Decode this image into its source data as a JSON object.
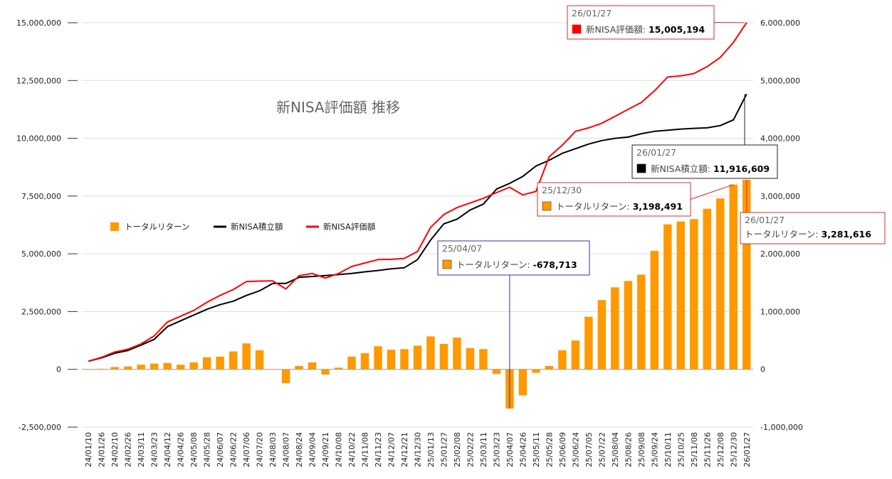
{
  "chart_data": {
    "type": "bar+line",
    "title": "新NISA評価額 推移",
    "x_tick_labels": [
      "24/01/10",
      "24/01/26",
      "24/02/10",
      "24/02/26",
      "24/03/11",
      "24/03/23",
      "24/04/12",
      "24/04/26",
      "24/05/08",
      "24/05/28",
      "24/06/07",
      "24/06/22",
      "24/07/06",
      "24/07/20",
      "24/08/03",
      "24/08/07",
      "24/08/24",
      "24/09/04",
      "24/09/21",
      "24/10/08",
      "24/10/22",
      "24/11/08",
      "24/11/23",
      "24/12/07",
      "24/12/21",
      "24/12/30",
      "25/01/13",
      "25/01/27",
      "25/02/08",
      "25/02/22",
      "25/03/11",
      "25/03/23",
      "25/04/07",
      "25/04/26",
      "25/05/11",
      "25/05/28",
      "25/06/09",
      "25/06/24",
      "25/07/05",
      "25/07/22",
      "25/08/04",
      "25/08/26",
      "25/09/08",
      "25/09/24",
      "25/10/11",
      "25/10/25",
      "25/11/08",
      "25/11/26",
      "25/12/08",
      "25/12/30",
      "26/01/27"
    ],
    "y_left": {
      "min": -2500000,
      "max": 15000000,
      "ticks": [
        "-2,500,000",
        "0",
        "2,500,000",
        "5,000,000",
        "7,500,000",
        "10,000,000",
        "12,500,000",
        "15,000,000"
      ],
      "tick_values": [
        -2500000,
        0,
        2500000,
        5000000,
        7500000,
        10000000,
        12500000,
        15000000
      ]
    },
    "y_right": {
      "min": -1000000,
      "max": 6000000,
      "ticks": [
        "-1,000,000",
        "0",
        "1,000,000",
        "2,000,000",
        "3,000,000",
        "4,000,000",
        "5,000,000",
        "6,000,000"
      ],
      "tick_values": [
        -1000000,
        0,
        1000000,
        2000000,
        3000000,
        4000000,
        5000000,
        6000000
      ]
    },
    "series": [
      {
        "name": "トータルリターン",
        "type": "bar",
        "axis": "right",
        "color": "#ff9900",
        "values": [
          0,
          10000,
          40000,
          50000,
          80000,
          100000,
          110000,
          80000,
          120000,
          210000,
          220000,
          310000,
          450000,
          330000,
          5000,
          -240000,
          60000,
          120000,
          -90000,
          30000,
          220000,
          280000,
          400000,
          340000,
          350000,
          410000,
          570000,
          440000,
          550000,
          370000,
          350000,
          -80000,
          -678713,
          -450000,
          -60000,
          60000,
          330000,
          500000,
          910000,
          1200000,
          1420000,
          1530000,
          1640000,
          2050000,
          2510000,
          2560000,
          2600000,
          2780000,
          2960000,
          3198491,
          3281616
        ]
      },
      {
        "name": "新NISA積立額",
        "type": "line",
        "axis": "left",
        "color": "#000000",
        "values": [
          350000,
          500000,
          700000,
          820000,
          1050000,
          1300000,
          1850000,
          2100000,
          2350000,
          2600000,
          2800000,
          2950000,
          3200000,
          3400000,
          3720000,
          3720000,
          3980000,
          4020000,
          4060000,
          4100000,
          4150000,
          4220000,
          4280000,
          4350000,
          4400000,
          4750000,
          5600000,
          6300000,
          6500000,
          6900000,
          7150000,
          7800000,
          8050000,
          8350000,
          8800000,
          9050000,
          9350000,
          9550000,
          9750000,
          9900000,
          10000000,
          10050000,
          10200000,
          10300000,
          10350000,
          10400000,
          10430000,
          10450000,
          10550000,
          10800000,
          11916609
        ]
      },
      {
        "name": "新NISA評価額",
        "type": "line",
        "axis": "left",
        "color": "#ff0000",
        "values": [
          350000,
          520000,
          750000,
          870000,
          1100000,
          1450000,
          2050000,
          2300000,
          2550000,
          2900000,
          3200000,
          3450000,
          3800000,
          3820000,
          3830000,
          3480000,
          4050000,
          4150000,
          3950000,
          4150000,
          4450000,
          4600000,
          4750000,
          4760000,
          4800000,
          5100000,
          6150000,
          6700000,
          7000000,
          7200000,
          7400000,
          7650000,
          7880000,
          7550000,
          7700000,
          9200000,
          9700000,
          10300000,
          10450000,
          10650000,
          10950000,
          11250000,
          11550000,
          12050000,
          12650000,
          12700000,
          12800000,
          13100000,
          13500000,
          14150000,
          15005194
        ]
      }
    ],
    "legend": [
      "トータルリターン",
      "新NISA積立額",
      "新NISA評価額"
    ],
    "legend_position": "center-left",
    "tooltips": [
      {
        "date": "26/01/27",
        "label": "新NISA評価額",
        "value": "15,005,194",
        "color": "#ff0000",
        "border": "#cc3333"
      },
      {
        "date": "26/01/27",
        "label": "新NISA積立額",
        "value": "11,916,609",
        "color": "#000000",
        "border": "#222222"
      },
      {
        "date": "25/12/30",
        "label": "トータルリターン",
        "value": "3,198,491",
        "color": "#ff9900",
        "border": "#cc3333"
      },
      {
        "date": "26/01/27",
        "label": "トータルリターン",
        "value": "3,281,616",
        "color": "#ff9900",
        "border": "#cc3333"
      },
      {
        "date": "25/04/07",
        "label": "トータルリターン",
        "value": "-678,713",
        "color": "#ff9900",
        "border": "#333399"
      }
    ]
  }
}
